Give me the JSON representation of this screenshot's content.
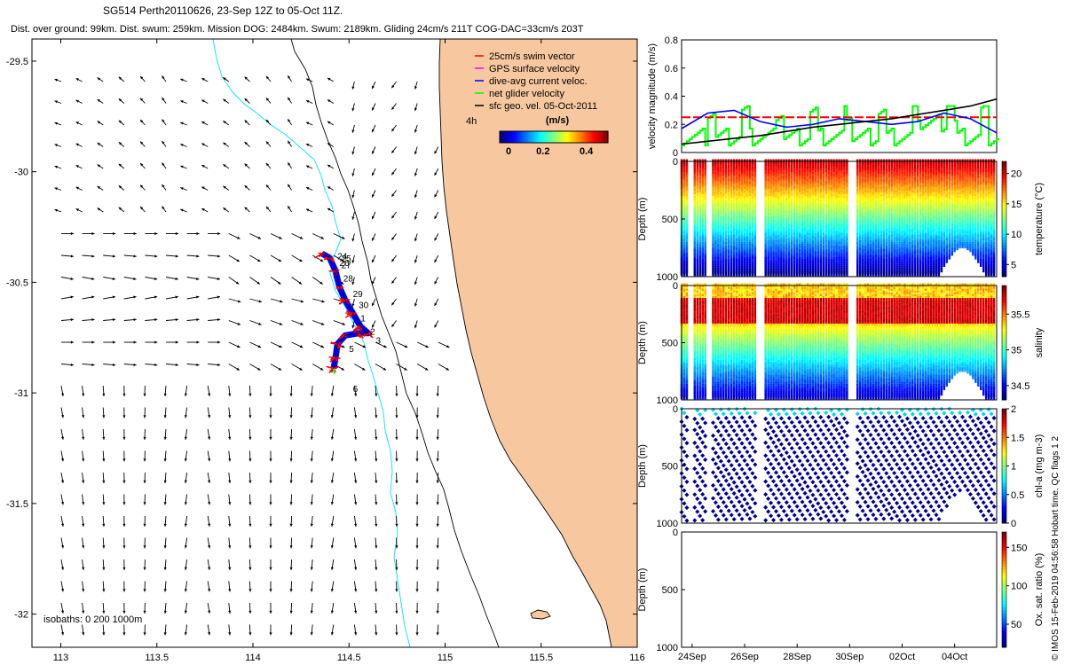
{
  "header": {
    "title": "SG514 Perth20110626, 23-Sep 12Z to 05-Oct 11Z.",
    "subtitle": "Dist. over ground: 99km. Dist. swum: 259km. Mission DOG: 2484km. Swum: 2189km. Gliding 24cm/s 211T COG-DAC=33cm/s 203T"
  },
  "colors": {
    "land": "#f7c89f",
    "coast": "#000000",
    "isobath_200": "#000000",
    "isobath_1000": "#00e0ff",
    "swim_vector": "#ff0000",
    "gps_velocity": "#ff00ff",
    "dac": "#0000ff",
    "net_velocity": "#00ff00",
    "geostrophic": "#000000"
  },
  "chart_data": [
    {
      "type": "map",
      "name": "glider-track-map",
      "xlim": [
        112.85,
        116
      ],
      "ylim": [
        -32.15,
        -29.4
      ],
      "x_ticks": [
        "113",
        "113.5",
        "114",
        "114.5",
        "115",
        "115.5",
        "116"
      ],
      "x_tick_values": [
        113,
        113.5,
        114,
        114.5,
        115,
        115.5,
        116
      ],
      "y_ticks": [
        "-29.5",
        "-30",
        "-30.5",
        "-31",
        "-31.5",
        "-32"
      ],
      "y_tick_values": [
        -29.5,
        -30,
        -30.5,
        -31,
        -31.5,
        -32
      ],
      "legend": {
        "placement": "top-right",
        "entries": [
          {
            "label": "25cm/s swim vector",
            "color": "#ff0000"
          },
          {
            "label": "GPS surface velocity",
            "color": "#ff00ff"
          },
          {
            "label": "dive-avg current veloc.",
            "color": "#0000ff"
          },
          {
            "label": "net glider velocity",
            "color": "#00ff00"
          },
          {
            "label": "sfc geo. vel. 05-Oct-2011",
            "color": "#000000"
          }
        ]
      },
      "scale_label": "4h",
      "colorbar": {
        "title": "(m/s)",
        "ticks": [
          "0",
          "0.2",
          "0.4"
        ],
        "range": [
          0,
          0.5
        ]
      },
      "isobaths_label": "isobaths: 0   200  1000m",
      "day_labels": [
        {
          "text": "24",
          "lon": 114.44,
          "lat": -30.38
        },
        {
          "text": "25",
          "lon": 114.46,
          "lat": -30.39
        },
        {
          "text": "26",
          "lon": 114.45,
          "lat": -30.41
        },
        {
          "text": "27",
          "lon": 114.46,
          "lat": -30.42
        },
        {
          "text": "28",
          "lon": 114.47,
          "lat": -30.48
        },
        {
          "text": "29",
          "lon": 114.52,
          "lat": -30.55
        },
        {
          "text": "30",
          "lon": 114.55,
          "lat": -30.6
        },
        {
          "text": "1",
          "lon": 114.56,
          "lat": -30.66
        },
        {
          "text": "2",
          "lon": 114.61,
          "lat": -30.72
        },
        {
          "text": "3",
          "lon": 114.64,
          "lat": -30.76
        },
        {
          "text": "5",
          "lon": 114.5,
          "lat": -30.8
        },
        {
          "text": "6",
          "lon": 114.52,
          "lat": -30.98
        }
      ],
      "track": [
        {
          "lon": 114.36,
          "lat": -30.37
        },
        {
          "lon": 114.4,
          "lat": -30.39
        },
        {
          "lon": 114.43,
          "lat": -30.45
        },
        {
          "lon": 114.45,
          "lat": -30.52
        },
        {
          "lon": 114.48,
          "lat": -30.58
        },
        {
          "lon": 114.52,
          "lat": -30.64
        },
        {
          "lon": 114.56,
          "lat": -30.7
        },
        {
          "lon": 114.6,
          "lat": -30.73
        },
        {
          "lon": 114.55,
          "lat": -30.73
        },
        {
          "lon": 114.48,
          "lat": -30.74
        },
        {
          "lon": 114.44,
          "lat": -30.78
        },
        {
          "lon": 114.43,
          "lat": -30.84
        },
        {
          "lon": 114.42,
          "lat": -30.89
        }
      ]
    },
    {
      "type": "line",
      "name": "velocity-magnitude",
      "ylabel": "velocity magnitude (m/s)",
      "ylim": [
        0,
        0.8
      ],
      "y_ticks": [
        "0",
        "0.2",
        "0.4",
        "0.6",
        "0.8"
      ],
      "x_range_days": [
        0,
        12
      ],
      "series": [
        {
          "color": "#ff0000",
          "x": [
            0,
            12
          ],
          "y": [
            0.25,
            0.25
          ]
        },
        {
          "color": "#0000ff",
          "x": [
            0,
            1,
            2,
            3,
            4,
            5,
            6,
            7,
            8,
            9,
            10,
            11,
            12
          ],
          "y": [
            0.17,
            0.28,
            0.3,
            0.22,
            0.18,
            0.2,
            0.24,
            0.22,
            0.2,
            0.22,
            0.28,
            0.24,
            0.14
          ]
        },
        {
          "color": "#000000",
          "x": [
            0,
            1,
            2,
            3,
            4,
            5,
            6,
            7,
            8,
            9,
            10,
            11,
            12
          ],
          "y": [
            0.06,
            0.08,
            0.1,
            0.12,
            0.15,
            0.18,
            0.2,
            0.22,
            0.24,
            0.27,
            0.3,
            0.33,
            0.38
          ]
        },
        {
          "color": "#00ff00",
          "x": [
            0,
            1,
            2,
            3,
            4,
            5,
            6,
            7,
            8,
            9,
            10,
            11,
            12
          ],
          "y": [
            0.12,
            0.06,
            0.18,
            0.22,
            0.12,
            0.08,
            0.15,
            0.1,
            0.16,
            0.12,
            0.2,
            0.32,
            0.15
          ]
        }
      ]
    },
    {
      "type": "scatter",
      "name": "temperature-section",
      "ylabel": "Depth (m)",
      "colorbar_label": "temperature (°C)",
      "ylim": [
        1000,
        0
      ],
      "y_ticks": [
        "0",
        "500",
        "1000"
      ],
      "colorbar_ticks": [
        "5",
        "10",
        "15",
        "20"
      ],
      "colorbar_tick_values": [
        5,
        10,
        15,
        20
      ],
      "colorbar_range": [
        3,
        22
      ]
    },
    {
      "type": "scatter",
      "name": "salinity-section",
      "ylabel": "Depth (m)",
      "colorbar_label": "salinity",
      "ylim": [
        1000,
        0
      ],
      "y_ticks": [
        "0",
        "500",
        "1000"
      ],
      "colorbar_ticks": [
        "34.5",
        "35",
        "35.5"
      ],
      "colorbar_tick_values": [
        34.5,
        35,
        35.5
      ],
      "colorbar_range": [
        34.3,
        35.9
      ]
    },
    {
      "type": "scatter",
      "name": "chla-section",
      "ylabel": "Depth (m)",
      "colorbar_label": "chl-a (mg m-3)",
      "ylim": [
        1000,
        0
      ],
      "y_ticks": [
        "0",
        "500",
        "1000"
      ],
      "colorbar_ticks": [
        "0",
        "0.5",
        "1",
        "1.5",
        "2"
      ],
      "colorbar_tick_values": [
        0,
        0.5,
        1,
        1.5,
        2
      ],
      "colorbar_range": [
        0,
        2
      ]
    },
    {
      "type": "scatter",
      "name": "oxygen-section",
      "ylabel": "Depth (m)",
      "colorbar_label": "Ox. sat. ratio (%)",
      "ylim": [
        1000,
        0
      ],
      "y_ticks": [
        "0",
        "500",
        "1000"
      ],
      "colorbar_ticks": [
        "50",
        "100",
        "150"
      ],
      "colorbar_tick_values": [
        50,
        100,
        150
      ],
      "colorbar_range": [
        20,
        170
      ],
      "x_ticks": [
        "24Sep",
        "26Sep",
        "28Sep",
        "30Sep",
        "02Oct",
        "04Oct"
      ]
    }
  ],
  "footer": {
    "qc_note": "© IMOS 15-Feb-2019 04:56:58 Hobart time. QC flags 1  2"
  }
}
